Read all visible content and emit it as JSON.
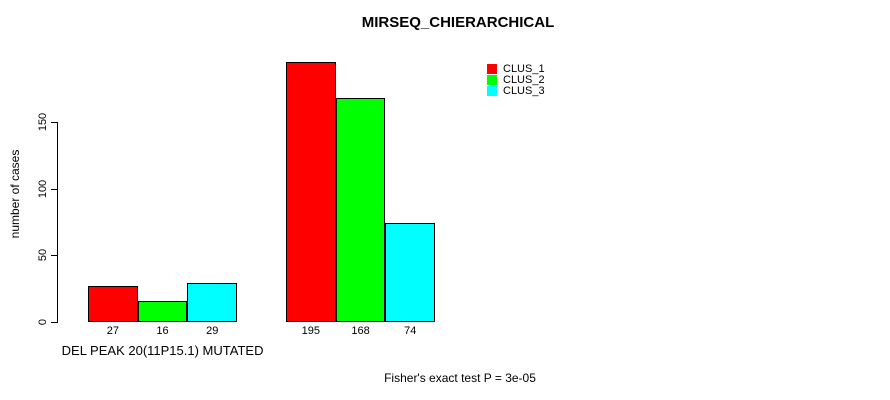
{
  "chart_data": {
    "type": "bar",
    "title": "MIRSEQ_CHIERARCHICAL",
    "ylabel": "number of cases",
    "xlabel": "",
    "categories": [
      "DEL PEAK 20(11P15.1) MUTATED",
      ""
    ],
    "series": [
      {
        "name": "CLUS_1",
        "color": "#ff0000",
        "values": [
          27,
          195
        ]
      },
      {
        "name": "CLUS_2",
        "color": "#00ff00",
        "values": [
          16,
          168
        ]
      },
      {
        "name": "CLUS_3",
        "color": "#00ffff",
        "values": [
          29,
          74
        ]
      }
    ],
    "yticks": [
      0,
      50,
      100,
      150
    ],
    "ylim": [
      0,
      200
    ],
    "grid": false,
    "legend_position": "top-right",
    "bar_border_color": "#000000",
    "annotation": "Fisher's exact test P = 3e-05"
  }
}
